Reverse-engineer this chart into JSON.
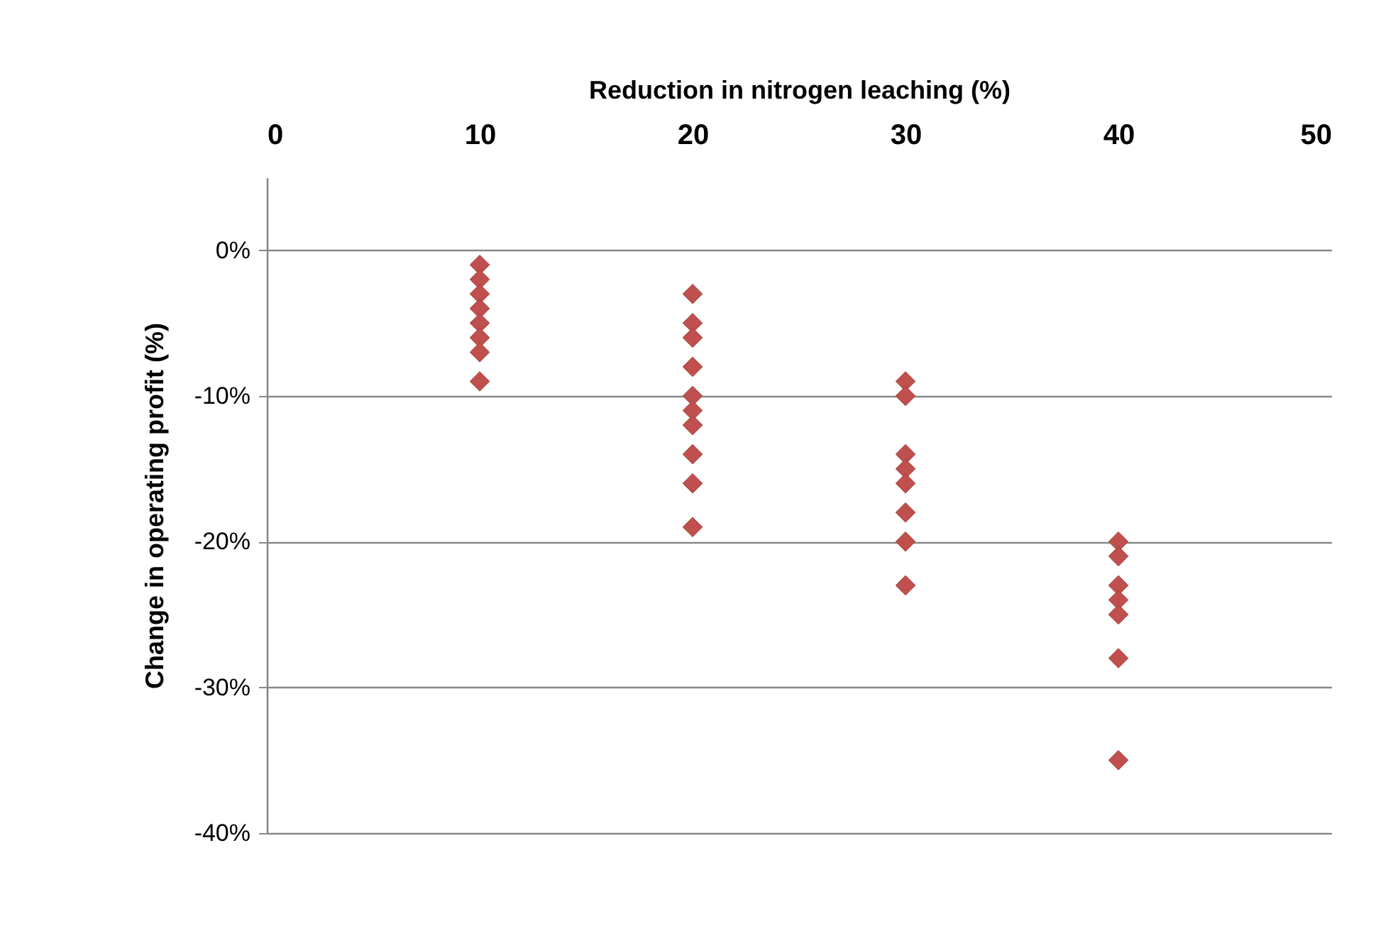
{
  "chart_data": {
    "type": "scatter",
    "xlabel": "Reduction in nitrogen leaching (%)",
    "ylabel": "Change in operating profit  (%)",
    "x": [
      10,
      10,
      10,
      10,
      10,
      10,
      10,
      10,
      20,
      20,
      20,
      20,
      20,
      20,
      20,
      20,
      20,
      20,
      30,
      30,
      30,
      30,
      30,
      30,
      30,
      30,
      40,
      40,
      40,
      40,
      40,
      40,
      40
    ],
    "series": [
      {
        "color": "#c0504d",
        "values": [
          -1,
          -2,
          -3,
          -4,
          -5,
          -6,
          -7,
          -9,
          -3,
          -5,
          -6,
          -8,
          -10,
          -11,
          -12,
          -14,
          -16,
          -19,
          -9,
          -10,
          -14,
          -15,
          -16,
          -18,
          -20,
          -23,
          -20,
          -21,
          -23,
          -24,
          -25,
          -28,
          -35
        ]
      }
    ],
    "xlim": [
      0,
      50
    ],
    "xticks": [
      0,
      10,
      20,
      30,
      40,
      50
    ],
    "ylim": [
      -40,
      5
    ],
    "yticks": [
      {
        "value": 0,
        "label": "0%"
      },
      {
        "value": -10,
        "label": "-10%"
      },
      {
        "value": -20,
        "label": "-20%"
      },
      {
        "value": -30,
        "label": "-30%"
      },
      {
        "value": -40,
        "label": "-40%"
      }
    ],
    "grid": "y",
    "marker": "diamond",
    "legend": false
  }
}
